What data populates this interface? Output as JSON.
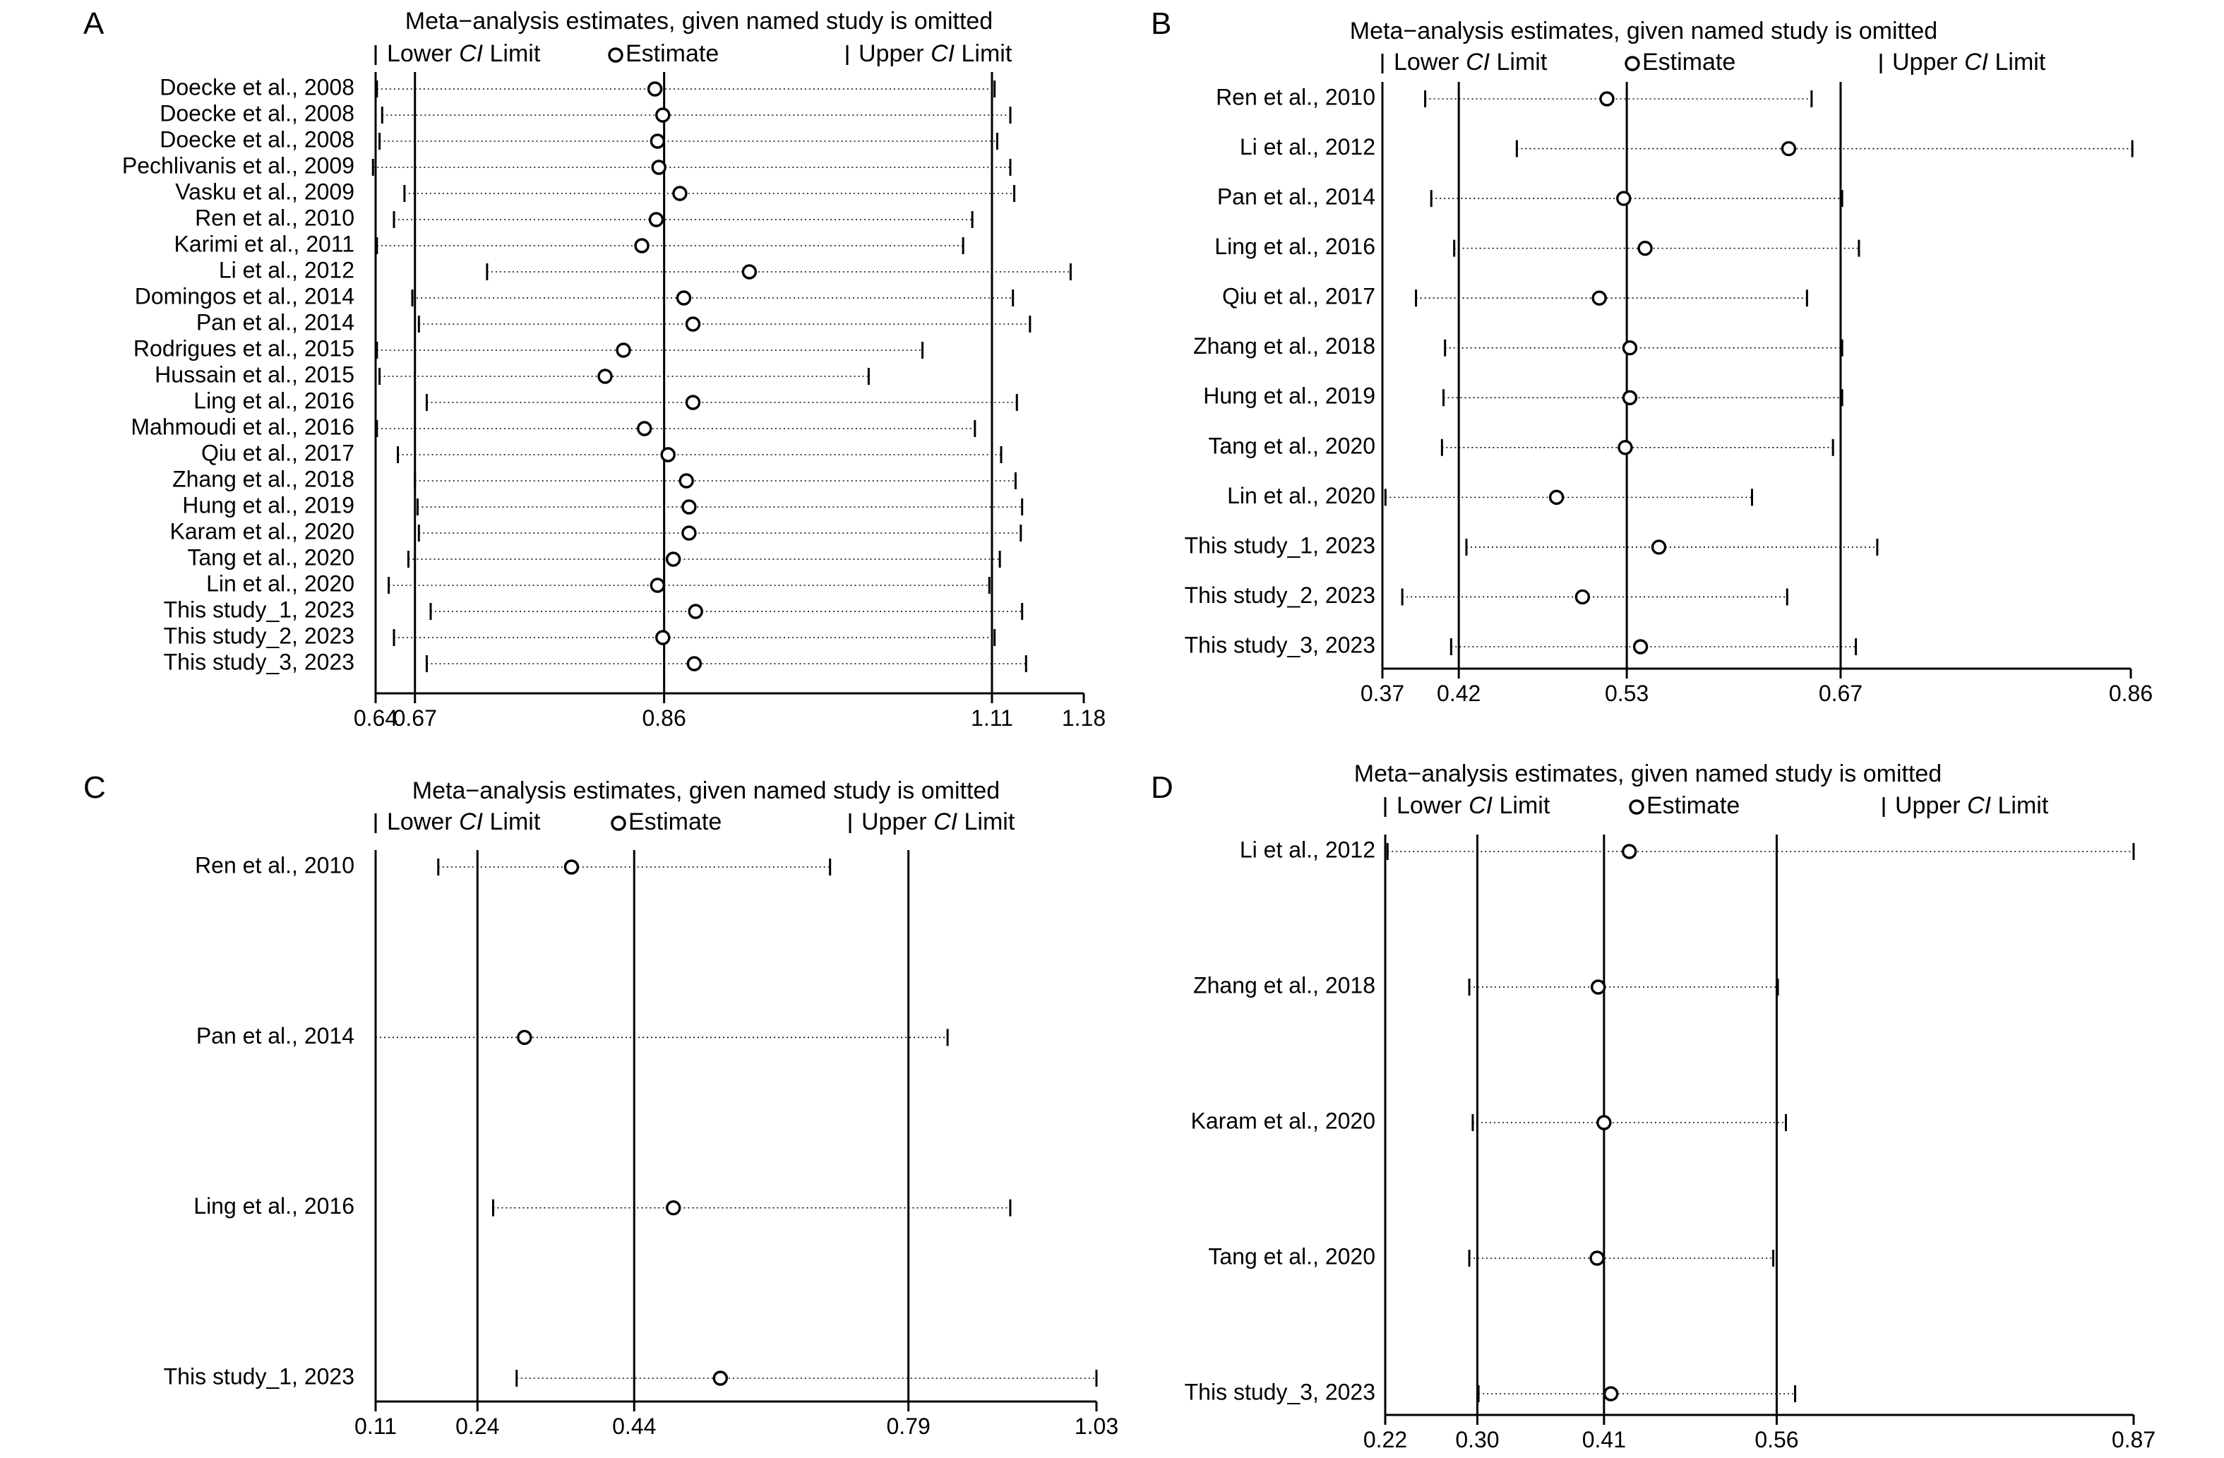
{
  "chart_data": [
    {
      "type": "forest",
      "panel": "A",
      "title": "Meta−analysis estimates, given named study is omitted",
      "legend": {
        "lower": "Lower CI Limit",
        "estimate": "Estimate",
        "upper": "Upper CI Limit"
      },
      "xlim": [
        0.64,
        1.18
      ],
      "ticks": [
        "0.64",
        "0.67",
        "0.86",
        "1.11",
        "1.18"
      ],
      "reference_lines": [
        0.67,
        0.86,
        1.11
      ],
      "studies": [
        {
          "label": "Doecke et al., 2008",
          "estimate": 0.853,
          "lower": 0.641,
          "upper": 1.112
        },
        {
          "label": "Doecke et al., 2008",
          "estimate": 0.859,
          "lower": 0.645,
          "upper": 1.124
        },
        {
          "label": "Doecke et al., 2008",
          "estimate": 0.855,
          "lower": 0.643,
          "upper": 1.114
        },
        {
          "label": "Pechlivanis et al., 2009",
          "estimate": 0.856,
          "lower": 0.638,
          "upper": 1.124
        },
        {
          "label": "Vasku et al., 2009",
          "estimate": 0.872,
          "lower": 0.662,
          "upper": 1.127
        },
        {
          "label": "Ren et al., 2010",
          "estimate": 0.854,
          "lower": 0.654,
          "upper": 1.095
        },
        {
          "label": "Karimi et al., 2011",
          "estimate": 0.843,
          "lower": 0.641,
          "upper": 1.088
        },
        {
          "label": "Li et al., 2012",
          "estimate": 0.925,
          "lower": 0.725,
          "upper": 1.17
        },
        {
          "label": "Domingos et al., 2014",
          "estimate": 0.875,
          "lower": 0.668,
          "upper": 1.126
        },
        {
          "label": "Pan et al., 2014",
          "estimate": 0.882,
          "lower": 0.673,
          "upper": 1.139
        },
        {
          "label": "Rodrigues et al., 2015",
          "estimate": 0.829,
          "lower": 0.641,
          "upper": 1.057
        },
        {
          "label": "Hussain et al., 2015",
          "estimate": 0.815,
          "lower": 0.643,
          "upper": 1.016
        },
        {
          "label": "Ling et al., 2016",
          "estimate": 0.882,
          "lower": 0.679,
          "upper": 1.129
        },
        {
          "label": "Mahmoudi et al., 2016",
          "estimate": 0.845,
          "lower": 0.641,
          "upper": 1.097
        },
        {
          "label": "Qiu et al., 2017",
          "estimate": 0.863,
          "lower": 0.657,
          "upper": 1.117
        },
        {
          "label": "Zhang et al., 2018",
          "estimate": 0.877,
          "lower": 0.67,
          "upper": 1.128
        },
        {
          "label": "Hung et al., 2019",
          "estimate": 0.879,
          "lower": 0.672,
          "upper": 1.133
        },
        {
          "label": "Karam et al., 2020",
          "estimate": 0.879,
          "lower": 0.673,
          "upper": 1.132
        },
        {
          "label": "Tang et al., 2020",
          "estimate": 0.867,
          "lower": 0.665,
          "upper": 1.116
        },
        {
          "label": "Lin et al., 2020",
          "estimate": 0.855,
          "lower": 0.65,
          "upper": 1.108
        },
        {
          "label": "This study_1, 2023",
          "estimate": 0.884,
          "lower": 0.682,
          "upper": 1.133
        },
        {
          "label": "This study_2, 2023",
          "estimate": 0.859,
          "lower": 0.654,
          "upper": 1.112
        },
        {
          "label": "This study_3, 2023",
          "estimate": 0.883,
          "lower": 0.679,
          "upper": 1.136
        }
      ]
    },
    {
      "type": "forest",
      "panel": "B",
      "title": "Meta−analysis estimates, given named study is omitted",
      "legend": {
        "lower": "Lower CI Limit",
        "estimate": "Estimate",
        "upper": "Upper CI Limit"
      },
      "xlim": [
        0.37,
        0.86
      ],
      "ticks": [
        "0.37",
        "0.42",
        "0.53",
        "0.67",
        "0.86"
      ],
      "reference_lines": [
        0.42,
        0.53,
        0.67
      ],
      "studies": [
        {
          "label": "Ren et al., 2010",
          "estimate": 0.517,
          "lower": 0.398,
          "upper": 0.651
        },
        {
          "label": "Li et al., 2012",
          "estimate": 0.636,
          "lower": 0.458,
          "upper": 0.861
        },
        {
          "label": "Pan et al., 2014",
          "estimate": 0.528,
          "lower": 0.402,
          "upper": 0.671
        },
        {
          "label": "Ling et al., 2016",
          "estimate": 0.542,
          "lower": 0.417,
          "upper": 0.682
        },
        {
          "label": "Qiu et al., 2017",
          "estimate": 0.512,
          "lower": 0.392,
          "upper": 0.648
        },
        {
          "label": "Zhang et al., 2018",
          "estimate": 0.532,
          "lower": 0.411,
          "upper": 0.671
        },
        {
          "label": "Hung et al., 2019",
          "estimate": 0.532,
          "lower": 0.41,
          "upper": 0.671
        },
        {
          "label": "Tang et al., 2020",
          "estimate": 0.529,
          "lower": 0.409,
          "upper": 0.665
        },
        {
          "label": "Lin et al., 2020",
          "estimate": 0.484,
          "lower": 0.372,
          "upper": 0.612
        },
        {
          "label": "This study_1, 2023",
          "estimate": 0.551,
          "lower": 0.425,
          "upper": 0.694
        },
        {
          "label": "This study_2, 2023",
          "estimate": 0.501,
          "lower": 0.383,
          "upper": 0.635
        },
        {
          "label": "This study_3, 2023",
          "estimate": 0.539,
          "lower": 0.415,
          "upper": 0.68
        }
      ]
    },
    {
      "type": "forest",
      "panel": "C",
      "title": "Meta−analysis estimates, given named study is omitted",
      "legend": {
        "lower": "Lower CI Limit",
        "estimate": "Estimate",
        "upper": "Upper CI Limit"
      },
      "xlim": [
        0.11,
        1.03
      ],
      "ticks": [
        "0.11",
        "0.24",
        "0.44",
        "0.79",
        "1.03"
      ],
      "reference_lines": [
        0.24,
        0.44,
        0.79
      ],
      "studies": [
        {
          "label": "Ren et al., 2010",
          "estimate": 0.36,
          "lower": 0.19,
          "upper": 0.69
        },
        {
          "label": "Pan et al., 2014",
          "estimate": 0.3,
          "lower": 0.11,
          "upper": 0.84
        },
        {
          "label": "Ling et al., 2016",
          "estimate": 0.49,
          "lower": 0.26,
          "upper": 0.92
        },
        {
          "label": "This study_1, 2023",
          "estimate": 0.55,
          "lower": 0.29,
          "upper": 1.03
        }
      ]
    },
    {
      "type": "forest",
      "panel": "D",
      "title": "Meta−analysis estimates, given named study is omitted",
      "legend": {
        "lower": "Lower CI Limit",
        "estimate": "Estimate",
        "upper": "Upper CI Limit"
      },
      "xlim": [
        0.22,
        0.87
      ],
      "ticks": [
        "0.22",
        "0.30",
        "0.41",
        "0.56",
        "0.87"
      ],
      "reference_lines": [
        0.3,
        0.41,
        0.56
      ],
      "studies": [
        {
          "label": "Li et al., 2012",
          "estimate": 0.432,
          "lower": 0.222,
          "upper": 0.87
        },
        {
          "label": "Zhang et al., 2018",
          "estimate": 0.405,
          "lower": 0.293,
          "upper": 0.561
        },
        {
          "label": "Karam et al., 2020",
          "estimate": 0.41,
          "lower": 0.296,
          "upper": 0.568
        },
        {
          "label": "Tang et al., 2020",
          "estimate": 0.404,
          "lower": 0.293,
          "upper": 0.557
        },
        {
          "label": "This study_3, 2023",
          "estimate": 0.416,
          "lower": 0.301,
          "upper": 0.576
        }
      ]
    }
  ]
}
